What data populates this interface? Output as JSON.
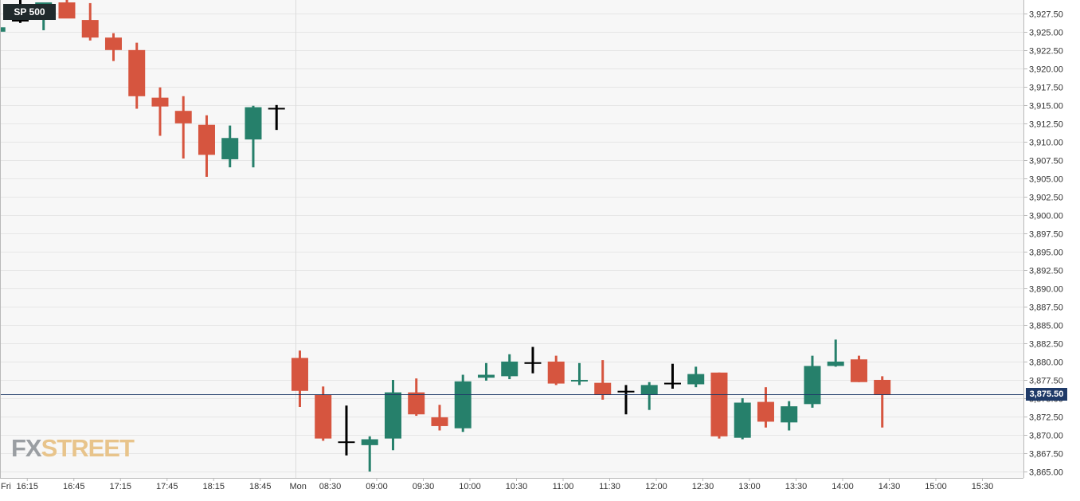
{
  "symbol": "SP 500",
  "last_price_label": "3,875.50",
  "logo": {
    "part1": "FX",
    "part2": "STREET"
  },
  "colors": {
    "up": "#26806b",
    "down": "#d6553f",
    "flat": "#000000",
    "last_price": "#1f3a68",
    "grid": "#e6e6e6"
  },
  "chart_data": {
    "type": "candlestick",
    "interval_minutes": 15,
    "session_breaks": [
      {
        "label": "Fri",
        "after_slot": -0.3
      },
      {
        "label": "Mon",
        "after_slot": 12.5
      }
    ],
    "x_tick_labels": [
      {
        "label": "16:15",
        "slot": 1
      },
      {
        "label": "16:45",
        "slot": 3
      },
      {
        "label": "17:15",
        "slot": 5
      },
      {
        "label": "17:45",
        "slot": 7
      },
      {
        "label": "18:15",
        "slot": 9
      },
      {
        "label": "18:45",
        "slot": 11
      },
      {
        "label": "08:30",
        "slot": 14
      },
      {
        "label": "09:00",
        "slot": 16
      },
      {
        "label": "09:30",
        "slot": 18
      },
      {
        "label": "10:00",
        "slot": 20
      },
      {
        "label": "10:30",
        "slot": 22
      },
      {
        "label": "11:00",
        "slot": 24
      },
      {
        "label": "11:30",
        "slot": 26
      },
      {
        "label": "12:00",
        "slot": 28
      },
      {
        "label": "12:30",
        "slot": 30
      },
      {
        "label": "13:00",
        "slot": 32
      },
      {
        "label": "13:30",
        "slot": 34
      },
      {
        "label": "14:00",
        "slot": 36
      },
      {
        "label": "14:30",
        "slot": 38
      },
      {
        "label": "15:00",
        "slot": 40
      },
      {
        "label": "15:30",
        "slot": 42
      }
    ],
    "y_ticks": [
      "3,865.00",
      "3,867.50",
      "3,870.00",
      "3,872.50",
      "3,875.00",
      "3,877.50",
      "3,880.00",
      "3,882.50",
      "3,885.00",
      "3,887.50",
      "3,890.00",
      "3,892.50",
      "3,895.00",
      "3,897.50",
      "3,900.00",
      "3,902.50",
      "3,905.00",
      "3,907.50",
      "3,910.00",
      "3,912.50",
      "3,915.00",
      "3,917.50",
      "3,920.00",
      "3,922.50",
      "3,925.00",
      "3,927.50"
    ],
    "ylim": [
      3865,
      3929
    ],
    "last_price": 3875.5,
    "candles": [
      {
        "slot": -0.3,
        "o": 3925.0,
        "h": 3927.0,
        "l": 3923.4,
        "c": 3925.6
      },
      {
        "slot": 0.7,
        "o": 3926.5,
        "h": 3929.5,
        "l": 3926.2,
        "c": 3926.5
      },
      {
        "slot": 1.7,
        "o": 3926.8,
        "h": 3929.0,
        "l": 3925.2,
        "c": 3929.0
      },
      {
        "slot": 2.7,
        "o": 3929.0,
        "h": 3929.5,
        "l": 3926.9,
        "c": 3926.8
      },
      {
        "slot": 3.7,
        "o": 3926.6,
        "h": 3928.9,
        "l": 3923.8,
        "c": 3924.2
      },
      {
        "slot": 4.7,
        "o": 3924.2,
        "h": 3924.8,
        "l": 3921.0,
        "c": 3922.5
      },
      {
        "slot": 5.7,
        "o": 3922.5,
        "h": 3923.5,
        "l": 3914.5,
        "c": 3916.2
      },
      {
        "slot": 6.7,
        "o": 3916.0,
        "h": 3917.4,
        "l": 3910.8,
        "c": 3914.8
      },
      {
        "slot": 7.7,
        "o": 3914.2,
        "h": 3916.2,
        "l": 3907.7,
        "c": 3912.5
      },
      {
        "slot": 8.7,
        "o": 3912.3,
        "h": 3913.6,
        "l": 3905.2,
        "c": 3908.2
      },
      {
        "slot": 9.7,
        "o": 3907.6,
        "h": 3912.2,
        "l": 3906.5,
        "c": 3910.5
      },
      {
        "slot": 10.7,
        "o": 3910.3,
        "h": 3914.9,
        "l": 3906.5,
        "c": 3914.7
      },
      {
        "slot": 11.7,
        "o": 3914.5,
        "h": 3915.0,
        "l": 3911.6,
        "c": 3914.5
      },
      {
        "slot": 12.7,
        "o": 3880.5,
        "h": 3881.5,
        "l": 3873.8,
        "c": 3876.0
      },
      {
        "slot": 13.7,
        "o": 3875.5,
        "h": 3876.6,
        "l": 3869.2,
        "c": 3869.5
      },
      {
        "slot": 14.7,
        "o": 3869.0,
        "h": 3874.0,
        "l": 3867.2,
        "c": 3869.0
      },
      {
        "slot": 15.7,
        "o": 3868.6,
        "h": 3869.8,
        "l": 3865.0,
        "c": 3869.4
      },
      {
        "slot": 16.7,
        "o": 3869.5,
        "h": 3877.5,
        "l": 3867.9,
        "c": 3875.8
      },
      {
        "slot": 17.7,
        "o": 3875.8,
        "h": 3877.7,
        "l": 3872.6,
        "c": 3872.8
      },
      {
        "slot": 18.7,
        "o": 3872.4,
        "h": 3874.1,
        "l": 3870.6,
        "c": 3871.2
      },
      {
        "slot": 19.7,
        "o": 3870.9,
        "h": 3878.2,
        "l": 3870.4,
        "c": 3877.3
      },
      {
        "slot": 20.7,
        "o": 3877.8,
        "h": 3879.8,
        "l": 3877.4,
        "c": 3878.2
      },
      {
        "slot": 21.7,
        "o": 3878.0,
        "h": 3881.0,
        "l": 3877.6,
        "c": 3880.0
      },
      {
        "slot": 22.7,
        "o": 3879.8,
        "h": 3882.0,
        "l": 3878.4,
        "c": 3879.8
      },
      {
        "slot": 23.7,
        "o": 3880.0,
        "h": 3880.8,
        "l": 3876.8,
        "c": 3877.0
      },
      {
        "slot": 24.7,
        "o": 3877.3,
        "h": 3879.8,
        "l": 3876.8,
        "c": 3877.5
      },
      {
        "slot": 25.7,
        "o": 3877.1,
        "h": 3880.2,
        "l": 3874.8,
        "c": 3875.5
      },
      {
        "slot": 26.7,
        "o": 3875.9,
        "h": 3876.8,
        "l": 3872.8,
        "c": 3875.9
      },
      {
        "slot": 27.7,
        "o": 3875.5,
        "h": 3877.2,
        "l": 3873.4,
        "c": 3876.8
      },
      {
        "slot": 28.7,
        "o": 3877.0,
        "h": 3879.7,
        "l": 3876.3,
        "c": 3877.0
      },
      {
        "slot": 29.7,
        "o": 3876.9,
        "h": 3879.3,
        "l": 3876.5,
        "c": 3878.3
      },
      {
        "slot": 30.7,
        "o": 3878.5,
        "h": 3878.5,
        "l": 3869.5,
        "c": 3869.8
      },
      {
        "slot": 31.7,
        "o": 3869.6,
        "h": 3875.0,
        "l": 3869.4,
        "c": 3874.4
      },
      {
        "slot": 32.7,
        "o": 3874.5,
        "h": 3876.5,
        "l": 3871.0,
        "c": 3871.8
      },
      {
        "slot": 33.7,
        "o": 3871.7,
        "h": 3874.6,
        "l": 3870.6,
        "c": 3873.9
      },
      {
        "slot": 34.7,
        "o": 3874.2,
        "h": 3880.8,
        "l": 3873.7,
        "c": 3879.4
      },
      {
        "slot": 35.7,
        "o": 3879.4,
        "h": 3883.0,
        "l": 3879.3,
        "c": 3880.0
      },
      {
        "slot": 36.7,
        "o": 3880.3,
        "h": 3880.8,
        "l": 3877.2,
        "c": 3877.2
      },
      {
        "slot": 37.7,
        "o": 3877.5,
        "h": 3878.0,
        "l": 3871.0,
        "c": 3875.5
      }
    ]
  }
}
